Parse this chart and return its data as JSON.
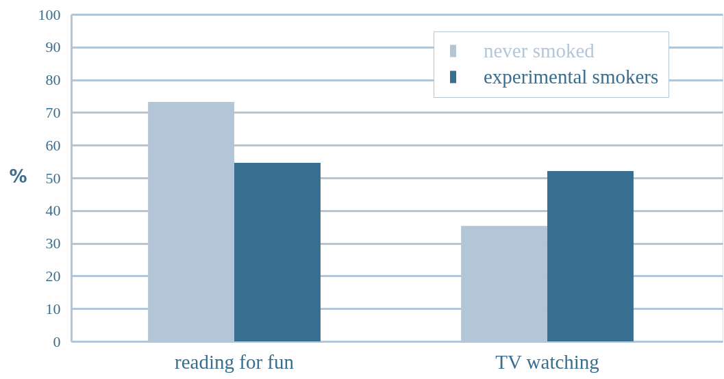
{
  "chart_data": {
    "type": "bar",
    "ylabel": "%",
    "categories": [
      "reading for fun",
      "TV watching"
    ],
    "series": [
      {
        "name": "never smoked",
        "color": "#b3c6d7",
        "values": [
          73.2,
          35.3
        ]
      },
      {
        "name": "experimental smokers",
        "color": "#386e8f",
        "values": [
          54.6,
          52.1
        ]
      }
    ],
    "ylim": [
      0,
      100
    ],
    "yticks": [
      0,
      10,
      20,
      30,
      40,
      50,
      60,
      70,
      80,
      90,
      100
    ],
    "grid": "y",
    "legend": "top right"
  }
}
